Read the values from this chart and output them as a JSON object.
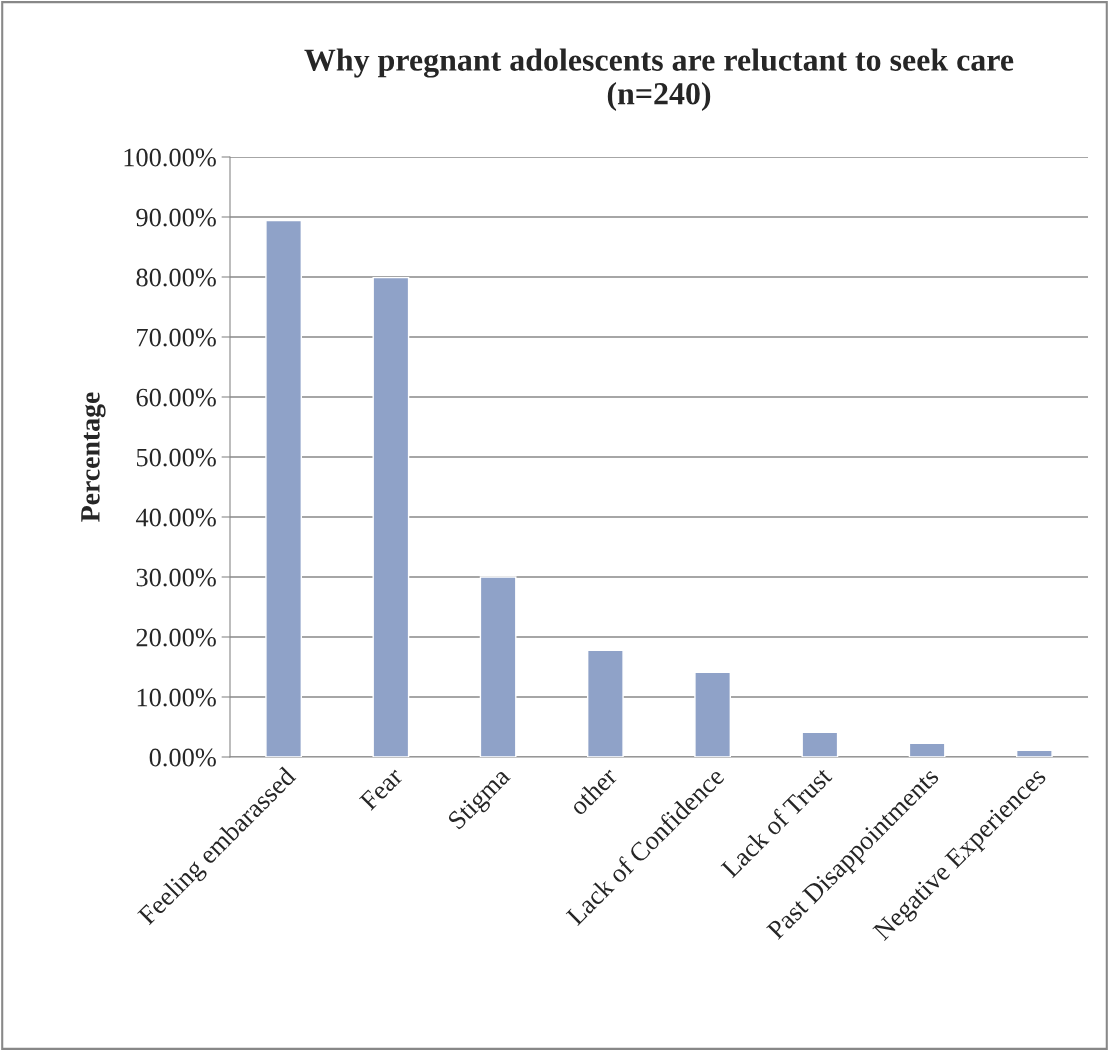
{
  "chart_data": {
    "type": "bar",
    "title": "Why pregnant adolescents are reluctant to seek care\n(n=240)",
    "ylabel": "Percentage",
    "categories": [
      "Feeling embarassed",
      "Fear",
      "Stigma",
      "other",
      "Lack of Confidence",
      "Lack of Trust",
      "Past Disappointments",
      "Negative Experiences"
    ],
    "values": [
      89.4,
      79.9,
      30.0,
      17.8,
      14.1,
      4.1,
      2.3,
      1.1
    ],
    "color": "#8fa2c8",
    "ylim": [
      0,
      100
    ],
    "yticks": [
      {
        "value": 0,
        "label": "0.00%"
      },
      {
        "value": 10,
        "label": "10.00%"
      },
      {
        "value": 20,
        "label": "20.00%"
      },
      {
        "value": 30,
        "label": "30.00%"
      },
      {
        "value": 40,
        "label": "40.00%"
      },
      {
        "value": 50,
        "label": "50.00%"
      },
      {
        "value": 60,
        "label": "60.00%"
      },
      {
        "value": 70,
        "label": "70.00%"
      },
      {
        "value": 80,
        "label": "80.00%"
      },
      {
        "value": 90,
        "label": "90.00%"
      },
      {
        "value": 100,
        "label": "100.00%"
      }
    ],
    "grid": "y"
  }
}
